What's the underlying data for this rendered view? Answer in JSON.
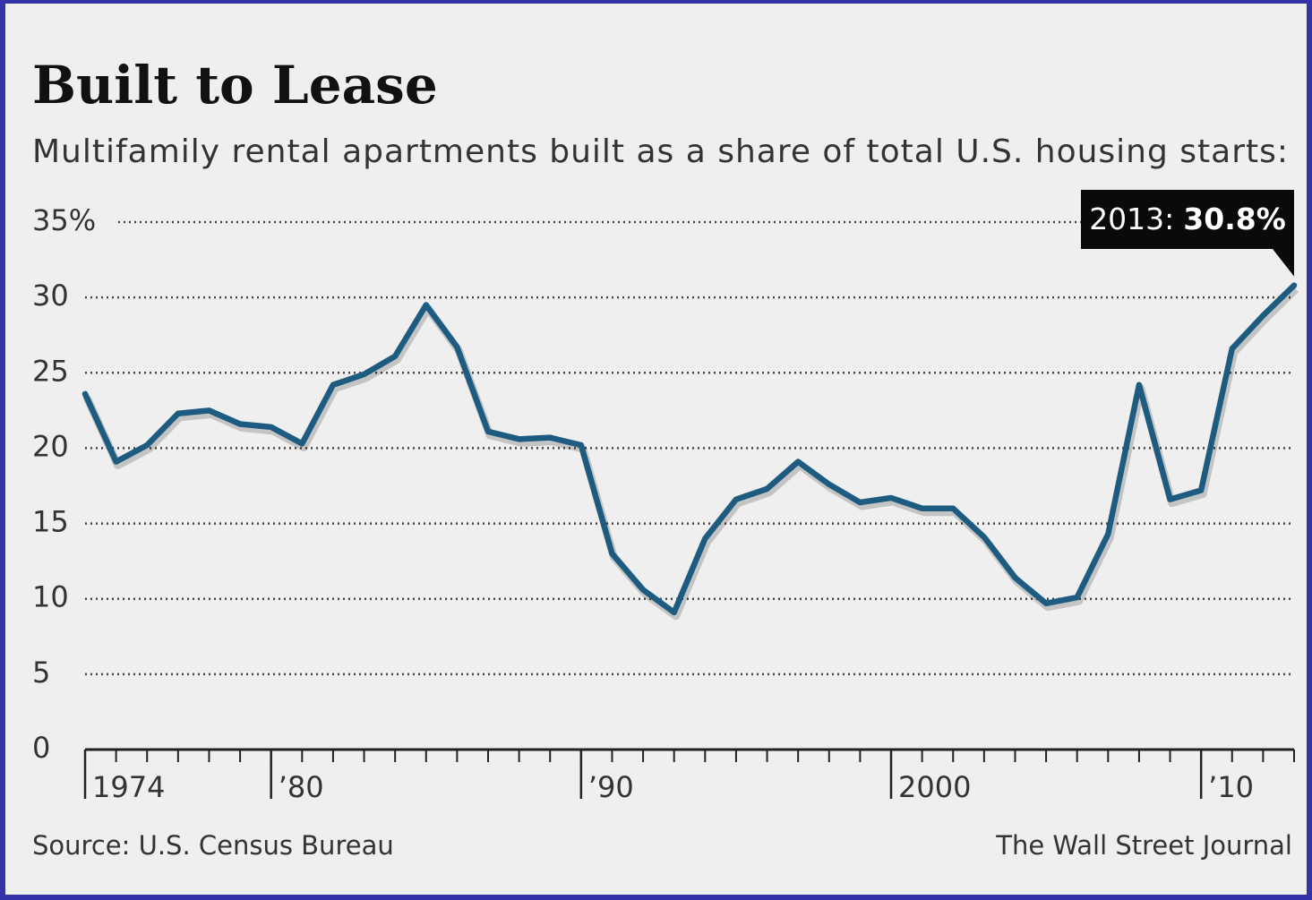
{
  "chart_data": {
    "type": "line",
    "title": "Built to Lease",
    "subtitle": "Multifamily rental apartments built as a share of total U.S. housing starts:",
    "x": [
      1974,
      1975,
      1976,
      1977,
      1978,
      1979,
      1980,
      1981,
      1982,
      1983,
      1984,
      1985,
      1986,
      1987,
      1988,
      1989,
      1990,
      1991,
      1992,
      1993,
      1994,
      1995,
      1996,
      1997,
      1998,
      1999,
      2000,
      2001,
      2002,
      2003,
      2004,
      2005,
      2006,
      2007,
      2008,
      2009,
      2010,
      2011,
      2012,
      2013
    ],
    "series": [
      {
        "name": null,
        "color": "#1d5b80",
        "values": [
          23.6,
          19.1,
          20.2,
          22.3,
          22.5,
          21.6,
          21.4,
          20.3,
          24.2,
          24.9,
          26.1,
          29.5,
          26.7,
          21.1,
          20.6,
          20.7,
          20.2,
          13.0,
          10.6,
          9.1,
          14.0,
          16.6,
          17.3,
          19.1,
          17.6,
          16.4,
          16.7,
          16.0,
          16.0,
          14.1,
          11.4,
          9.7,
          10.1,
          14.3,
          24.2,
          16.6,
          17.2,
          26.6,
          28.8,
          30.8
        ]
      }
    ],
    "xlim": [
      1974,
      2013
    ],
    "xticks": [
      {
        "value": 1974,
        "label": "1974"
      },
      {
        "value": 1980,
        "label": "’80"
      },
      {
        "value": 1990,
        "label": "’90"
      },
      {
        "value": 2000,
        "label": "2000"
      },
      {
        "value": 2010,
        "label": "’10"
      }
    ],
    "ylim": [
      0,
      35
    ],
    "yticks": [
      0,
      5,
      10,
      15,
      20,
      25,
      30,
      {
        "value": 35,
        "label": "35%"
      }
    ],
    "grid": true,
    "annotation": {
      "prefix": "2013:",
      "text": "30.8%"
    },
    "source": "Source: U.S. Census Bureau",
    "credit": "The Wall Street Journal"
  }
}
